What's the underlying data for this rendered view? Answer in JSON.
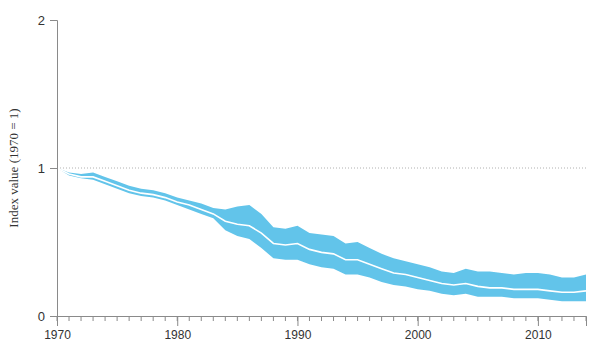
{
  "chart_data": {
    "type": "line",
    "y_label": "Index value (1970 = 1)",
    "x": [
      1970,
      1971,
      1972,
      1973,
      1974,
      1975,
      1976,
      1977,
      1978,
      1979,
      1980,
      1981,
      1982,
      1983,
      1984,
      1985,
      1986,
      1987,
      1988,
      1989,
      1990,
      1991,
      1992,
      1993,
      1994,
      1995,
      1996,
      1997,
      1998,
      1999,
      2000,
      2001,
      2002,
      2003,
      2004,
      2005,
      2006,
      2007,
      2008,
      2009,
      2010,
      2011,
      2012,
      2013,
      2014
    ],
    "values": [
      1.0,
      0.96,
      0.94,
      0.94,
      0.91,
      0.88,
      0.85,
      0.83,
      0.82,
      0.8,
      0.77,
      0.75,
      0.72,
      0.69,
      0.64,
      0.62,
      0.61,
      0.56,
      0.49,
      0.48,
      0.49,
      0.45,
      0.43,
      0.42,
      0.38,
      0.38,
      0.35,
      0.32,
      0.29,
      0.28,
      0.26,
      0.24,
      0.22,
      0.21,
      0.22,
      0.2,
      0.19,
      0.19,
      0.18,
      0.18,
      0.18,
      0.17,
      0.16,
      0.16,
      0.17
    ],
    "upper": [
      1.0,
      0.97,
      0.96,
      0.97,
      0.94,
      0.91,
      0.88,
      0.86,
      0.85,
      0.83,
      0.8,
      0.78,
      0.76,
      0.73,
      0.72,
      0.74,
      0.75,
      0.69,
      0.6,
      0.59,
      0.61,
      0.56,
      0.55,
      0.54,
      0.49,
      0.5,
      0.46,
      0.42,
      0.39,
      0.37,
      0.35,
      0.33,
      0.3,
      0.29,
      0.32,
      0.3,
      0.3,
      0.29,
      0.28,
      0.29,
      0.29,
      0.28,
      0.26,
      0.26,
      0.28
    ],
    "lower": [
      1.0,
      0.95,
      0.93,
      0.92,
      0.89,
      0.86,
      0.83,
      0.81,
      0.8,
      0.78,
      0.75,
      0.72,
      0.69,
      0.66,
      0.58,
      0.54,
      0.52,
      0.46,
      0.39,
      0.38,
      0.38,
      0.35,
      0.33,
      0.32,
      0.28,
      0.28,
      0.26,
      0.23,
      0.21,
      0.2,
      0.18,
      0.17,
      0.15,
      0.14,
      0.15,
      0.13,
      0.13,
      0.13,
      0.12,
      0.12,
      0.12,
      0.11,
      0.1,
      0.1,
      0.1
    ],
    "baseline": 1,
    "color": "#62c4ea",
    "xlim": [
      1970,
      2014
    ],
    "xticks": [
      1970,
      1980,
      1990,
      2000,
      2010
    ],
    "ylim": [
      0,
      2
    ],
    "yticks": [
      0,
      1,
      2
    ]
  }
}
